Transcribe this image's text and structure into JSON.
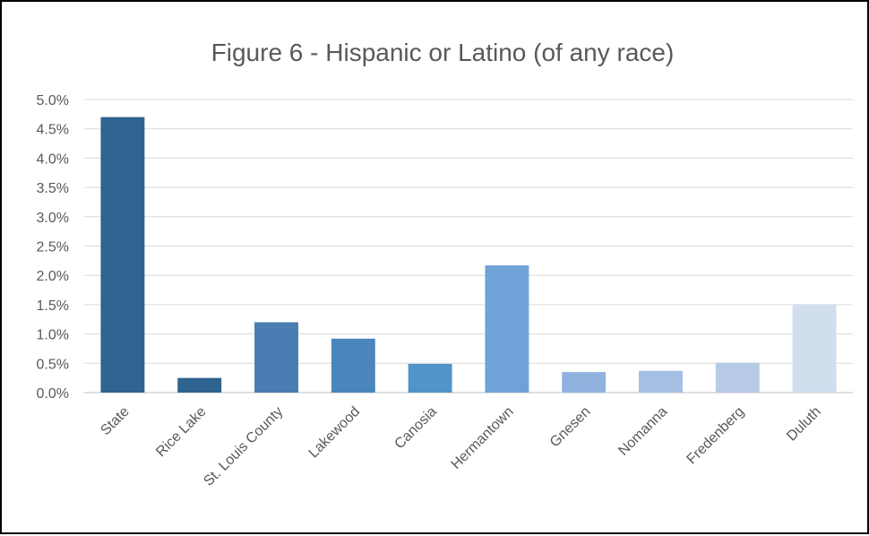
{
  "chart_data": {
    "type": "bar",
    "title": "Figure 6 - Hispanic or Latino (of any race)",
    "xlabel": "",
    "ylabel": "",
    "categories": [
      "State",
      "Rice Lake",
      "St. Louis County",
      "Lakewood",
      "Canosia",
      "Hermantown",
      "Gnesen",
      "Nomanna",
      "Fredenberg",
      "Duluth"
    ],
    "values": [
      4.7,
      0.25,
      1.2,
      0.92,
      0.49,
      2.17,
      0.35,
      0.37,
      0.51,
      1.5
    ],
    "value_unit": "%",
    "ylim": [
      0,
      5.0
    ],
    "y_ticks": [
      "0.0%",
      "0.5%",
      "1.0%",
      "1.5%",
      "2.0%",
      "2.5%",
      "3.0%",
      "3.5%",
      "4.0%",
      "4.5%",
      "5.0%"
    ],
    "y_tick_values": [
      0,
      0.5,
      1.0,
      1.5,
      2.0,
      2.5,
      3.0,
      3.5,
      4.0,
      4.5,
      5.0
    ],
    "bar_colors": [
      "#2f6390",
      "#2f6390",
      "#4a7db1",
      "#4a86bd",
      "#5094c9",
      "#6fa3d8",
      "#90b2de",
      "#a4bfe3",
      "#b7cbe6",
      "#d0deee"
    ],
    "grid": true,
    "legend": "none"
  }
}
